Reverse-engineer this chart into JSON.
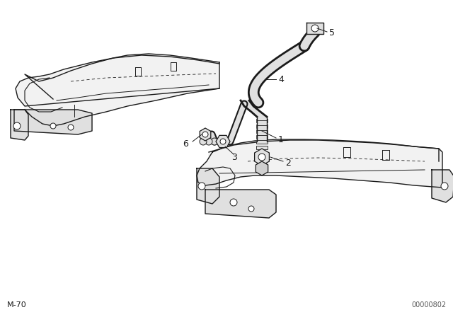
{
  "background_color": "#ffffff",
  "line_color": "#1a1a1a",
  "fill_cover": "#f2f2f2",
  "fill_dark": "#d0d0d0",
  "fill_mid": "#e0e0e0",
  "bottom_left_text": "M-70",
  "bottom_right_text": "00000802",
  "figsize": [
    6.4,
    4.48
  ],
  "dpi": 100
}
